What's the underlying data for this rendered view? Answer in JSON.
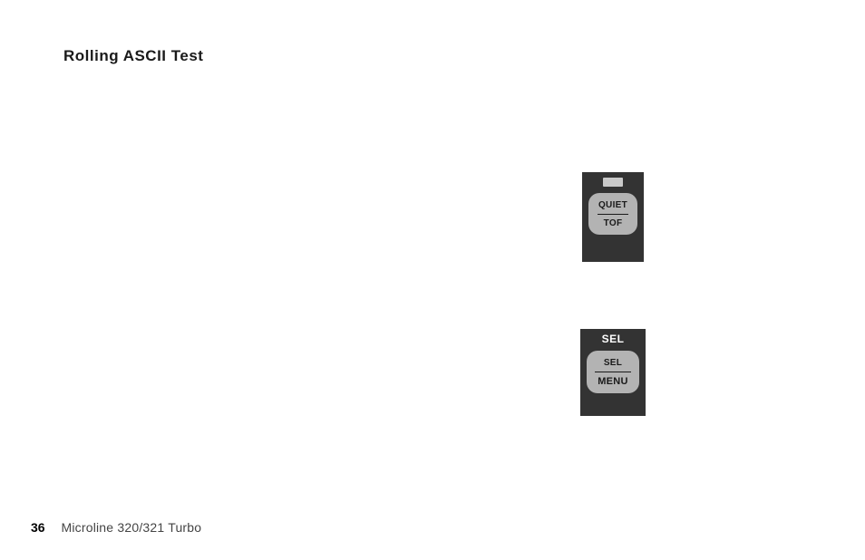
{
  "title": "Rolling ASCII Test",
  "footer": {
    "page_number": "36",
    "model": "Microline 320/321 Turbo"
  },
  "panels": {
    "quiet_tof": {
      "top_label": "QUIET",
      "bottom_label": "TOF"
    },
    "sel_menu": {
      "header": "SEL",
      "top_label": "SEL",
      "bottom_label": "MENU"
    }
  }
}
